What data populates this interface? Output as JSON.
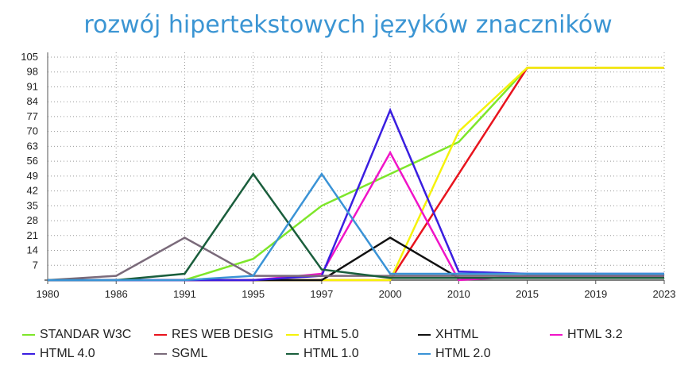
{
  "chart_data": {
    "type": "line",
    "title": "rozwój hipertekstowych języków znaczników",
    "categories": [
      "1980",
      "1986",
      "1991",
      "1995",
      "1997",
      "2000",
      "2010",
      "2015",
      "2019",
      "2023"
    ],
    "y_ticks": [
      "105",
      "98",
      "91",
      "84",
      "77",
      "70",
      "63",
      "56",
      "49",
      "42",
      "35",
      "28",
      "21",
      "14",
      "7"
    ],
    "ylim": [
      0,
      105
    ],
    "grid": true,
    "legend_position": "bottom",
    "series": [
      {
        "name": "STANDAR W3C",
        "color": "#7ee62a",
        "values": [
          0,
          0,
          0,
          10,
          35,
          50,
          65,
          100,
          100,
          100
        ]
      },
      {
        "name": "RES WEB DESIG",
        "color": "#e8141e",
        "values": [
          0,
          0,
          0,
          0,
          0,
          0,
          50,
          100,
          100,
          100
        ]
      },
      {
        "name": "HTML 5.0",
        "color": "#f5f20a",
        "values": [
          0,
          0,
          0,
          0,
          0,
          0,
          70,
          100,
          100,
          100
        ]
      },
      {
        "name": "XHTML",
        "color": "#111111",
        "values": [
          0,
          0,
          0,
          0,
          0,
          20,
          1,
          1,
          1,
          1
        ]
      },
      {
        "name": "HTML 3.2",
        "color": "#f014c8",
        "values": [
          0,
          0,
          0,
          0,
          3,
          60,
          0,
          2,
          2,
          2
        ]
      },
      {
        "name": "HTML 4.0",
        "color": "#3a1ee0",
        "values": [
          0,
          0,
          0,
          0,
          2,
          80,
          4,
          3,
          3,
          3
        ]
      },
      {
        "name": "SGML",
        "color": "#7a6a7a",
        "values": [
          0,
          2,
          20,
          2,
          2,
          2,
          2,
          2,
          2,
          2
        ]
      },
      {
        "name": "HTML 1.0",
        "color": "#1a5e3c",
        "values": [
          0,
          0,
          3,
          50,
          5,
          1,
          1,
          1,
          1,
          1
        ]
      },
      {
        "name": "HTML 2.0",
        "color": "#3a93d6",
        "values": [
          0,
          0,
          0,
          2,
          50,
          3,
          3,
          3,
          3,
          3
        ]
      }
    ]
  }
}
